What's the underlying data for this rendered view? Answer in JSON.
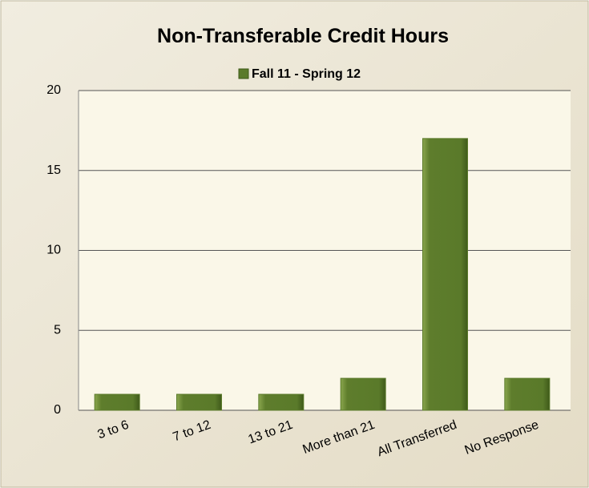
{
  "chart_data": {
    "type": "bar",
    "title": "Non-Transferable Credit Hours",
    "categories": [
      "3 to 6",
      "7 to 12",
      "13 to 21",
      "More than 21",
      "All Transferred",
      "No Response"
    ],
    "series": [
      {
        "name": "Fall 11 - Spring 12",
        "color": "#5a7a2a",
        "values": [
          1,
          1,
          1,
          2,
          17,
          2
        ]
      }
    ],
    "ylim": [
      0,
      20
    ],
    "yticks": [
      0,
      5,
      10,
      15,
      20
    ],
    "grid": true,
    "legend": "top"
  }
}
